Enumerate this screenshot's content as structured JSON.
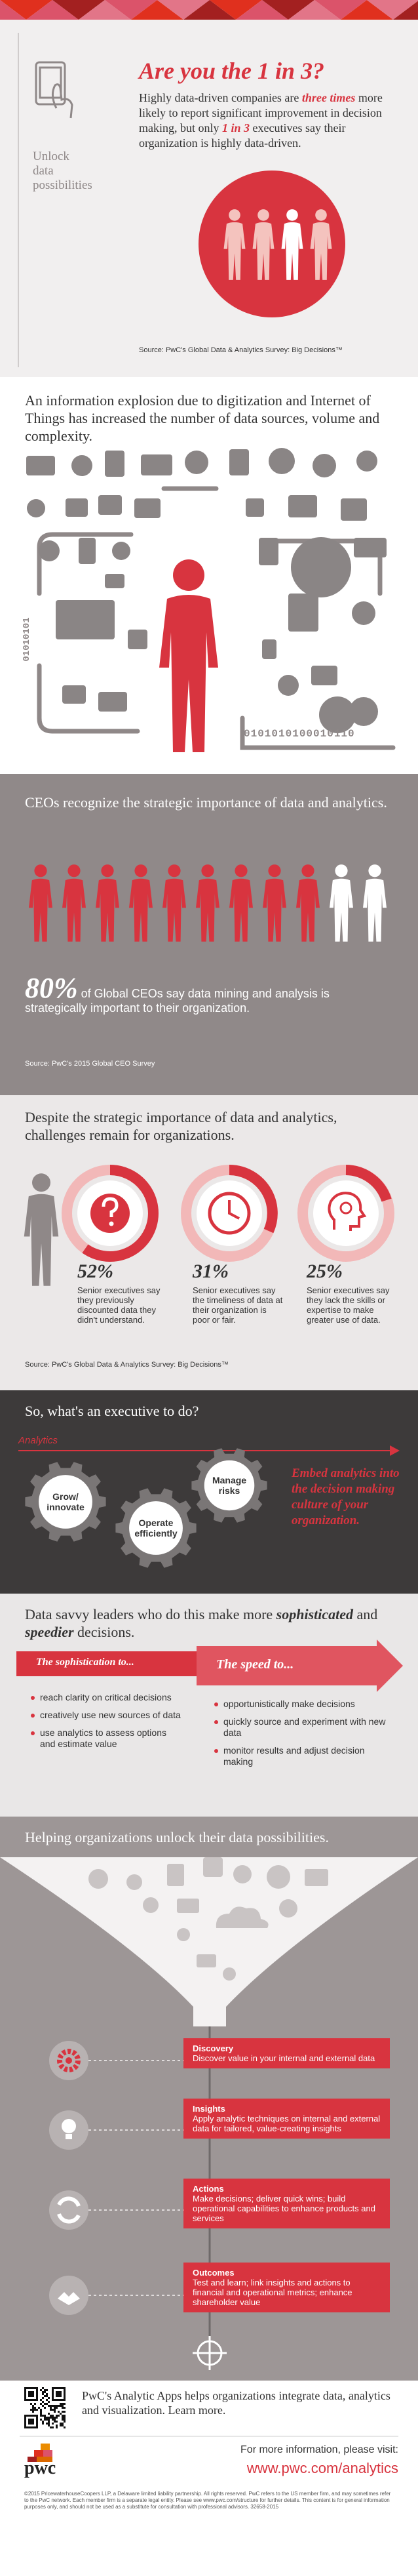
{
  "header": {
    "tagline": "Unlock data possibilities",
    "title": "Are you the 1 in 3?",
    "intro": [
      "Highly data-driven companies are ",
      "three times",
      " more likely to report significant improvement in decision making, but only ",
      "1 in 3",
      " executives say their organization is highly data-driven."
    ],
    "source": "Source: PwC's Global Data & Analytics Survey: Big Decisions™"
  },
  "explosion": {
    "heading": "An information explosion due to digitization and Internet of Things has increased the number of data sources, volume and complexity.",
    "binary_horizontal": "0101010100010110",
    "binary_vertical": "01010101"
  },
  "ceos": {
    "heading": "CEOs recognize the strategic importance of data and analytics.",
    "stat": "80%",
    "text": " of Global CEOs say data mining and analysis is strategically important to their organization.",
    "source": "Source: PwC's 2015 Global CEO Survey"
  },
  "challenges": {
    "heading": "Despite the strategic importance of data and analytics, challenges remain for organizations.",
    "items": [
      {
        "stat": "52%",
        "text": "Senior executives say they previously discounted data they didn't understand."
      },
      {
        "stat": "31%",
        "text": "Senior executives say the timeliness of data at their organization is poor or fair."
      },
      {
        "stat": "25%",
        "text": "Senior executives say they lack the skills or expertise to make greater use of data."
      }
    ],
    "source": "Source: PwC's Global Data & Analytics Survey: Big Decisions™"
  },
  "executive": {
    "heading": "So, what's an executive to do?",
    "label": "Analytics",
    "gears": [
      "Grow/ innovate",
      "Operate efficiently",
      "Manage risks"
    ],
    "callout": "Embed analytics into the decision making culture of your organization."
  },
  "leaders": {
    "heading": [
      "Data savvy leaders who do this make more ",
      "sophisticated",
      " and ",
      "speedier",
      " decisions."
    ],
    "sophistication": {
      "title": "The sophistication to...",
      "items": [
        "reach clarity on critical decisions",
        "creatively use new sources of data",
        "use analytics to assess options and estimate value"
      ]
    },
    "speed": {
      "title": "The speed to...",
      "items": [
        "opportunistically make decisions",
        "quickly source and experiment with new data",
        "monitor results and adjust decision making"
      ]
    }
  },
  "helping": {
    "heading": "Helping organizations unlock their data possibilities.",
    "steps": [
      {
        "title": "Discovery",
        "text": "Discover value in your internal and external data"
      },
      {
        "title": "Insights",
        "text": "Apply analytic techniques on internal and external data for tailored, value-creating insights"
      },
      {
        "title": "Actions",
        "text": "Make decisions; deliver quick wins; build operational capabilities to enhance products and services"
      },
      {
        "title": "Outcomes",
        "text": "Test and learn; link insights and actions to financial and operational metrics; enhance shareholder value"
      }
    ]
  },
  "apps": {
    "text": "PwC's Analytic Apps helps organizations integrate data, analytics and visualization. Learn more."
  },
  "footer": {
    "logo": "pwc",
    "cta": "For more information, please visit:",
    "url": "www.pwc.com/analytics",
    "legal": "©2015 PricewaterhouseCoopers LLP, a Delaware limited liability partnership. All rights reserved. PwC refers to the US member firm, and may sometimes refer to the PwC network. Each member firm is a separate legal entity. Please see www.pwc.com/structure for further details. This content is for general information purposes only, and should not be used as a substitute for consultation with professional advisors. 32658-2015"
  }
}
